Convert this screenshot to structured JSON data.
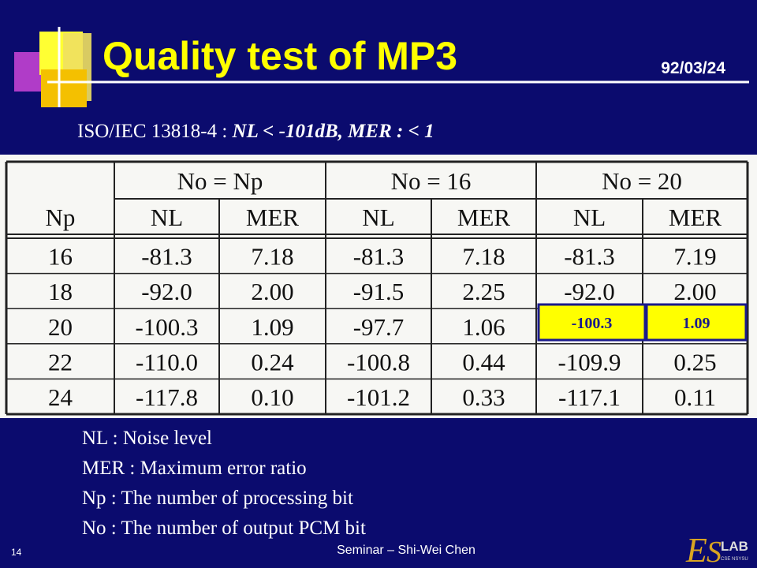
{
  "header": {
    "title": "Quality test of MP3",
    "date": "92/03/24"
  },
  "subtitle": [
    "ISO/IEC 13818-4 : ",
    "NL < -101dB, MER : < 1"
  ],
  "table": {
    "groups": [
      "No = Np",
      "No = 16",
      "No = 20"
    ],
    "columns": [
      "Np",
      "NL",
      "MER",
      "NL",
      "MER",
      "NL",
      "MER"
    ],
    "rows": [
      [
        "16",
        "-81.3",
        "7.18",
        "-81.3",
        "7.18",
        "-81.3",
        "7.19"
      ],
      [
        "18",
        "-92.0",
        "2.00",
        "-91.5",
        "2.25",
        "-92.0",
        "2.00"
      ],
      [
        "20",
        "-100.3",
        "1.09",
        "-97.7",
        "1.06",
        "-100.3",
        "1.09"
      ],
      [
        "22",
        "-110.0",
        "0.24",
        "-100.8",
        "0.44",
        "-109.9",
        "0.25"
      ],
      [
        "24",
        "-117.8",
        "0.10",
        "-101.2",
        "0.33",
        "-117.1",
        "0.11"
      ]
    ]
  },
  "highlight": [
    "-100.3",
    "1.09"
  ],
  "notes": [
    "NL : Noise level",
    "MER : Maximum error ratio",
    "Np : The number of processing bit",
    "No : The number of output PCM bit"
  ],
  "footer": {
    "presenter": "Seminar – Shi-Wei Chen",
    "page": "14",
    "logo": [
      "E",
      "S",
      "LAB",
      "CSE NSYSU"
    ]
  }
}
